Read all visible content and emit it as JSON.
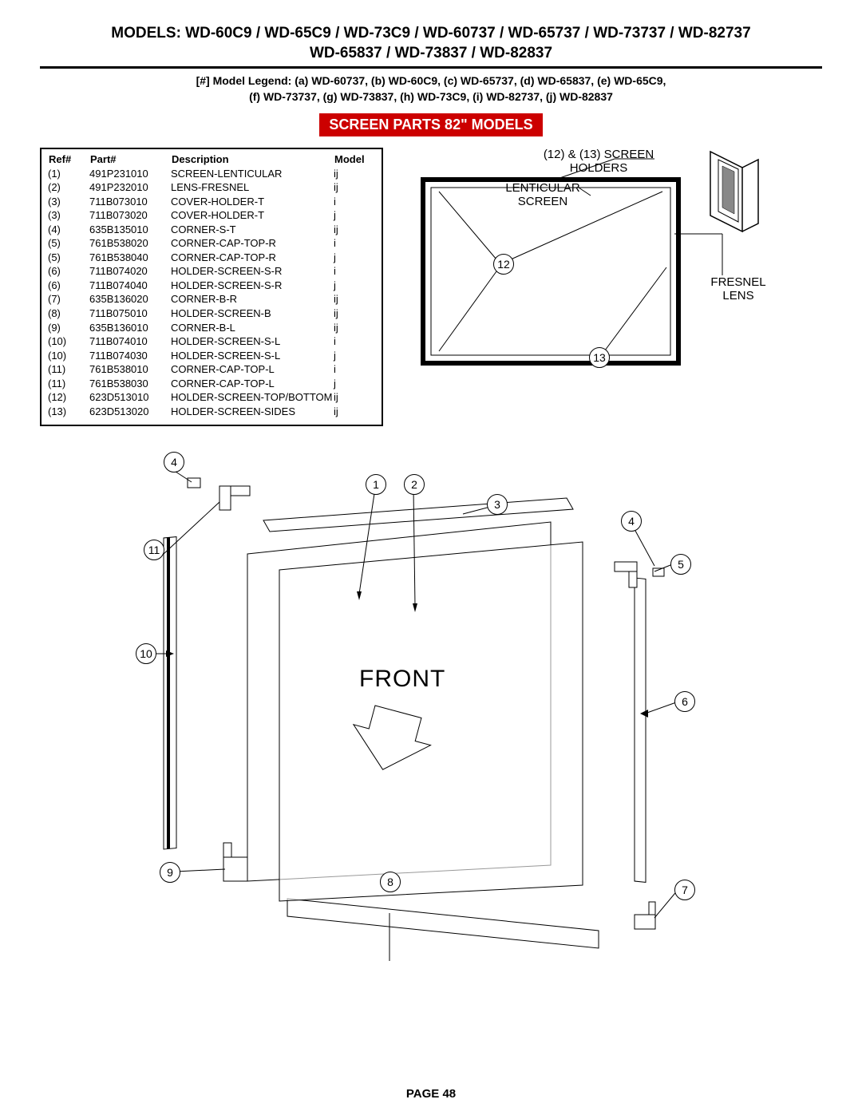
{
  "header": {
    "line1": "MODELS: WD-60C9 / WD-65C9 / WD-73C9 / WD-60737 / WD-65737 / WD-73737 / WD-82737",
    "line2": "WD-65837 / WD-73837 / WD-82837"
  },
  "legend": {
    "line1": "[#] Model Legend:   (a) WD-60737, (b) WD-60C9, (c) WD-65737, (d) WD-65837, (e) WD-65C9,",
    "line2": "(f) WD-73737, (g) WD-73837, (h) WD-73C9, (i) WD-82737, (j) WD-82837"
  },
  "title": "SCREEN PARTS 82\" MODELS",
  "parts": {
    "columns": [
      "Ref#",
      "Part#",
      "Description",
      "Model"
    ],
    "rows": [
      [
        "(1)",
        "491P231010",
        "SCREEN-LENTICULAR",
        "ij"
      ],
      [
        "(2)",
        "491P232010",
        "LENS-FRESNEL",
        "ij"
      ],
      [
        "(3)",
        "711B073010",
        "COVER-HOLDER-T",
        "i"
      ],
      [
        "(3)",
        "711B073020",
        "COVER-HOLDER-T",
        "j"
      ],
      [
        "(4)",
        "635B135010",
        "CORNER-S-T",
        "ij"
      ],
      [
        "(5)",
        "761B538020",
        "CORNER-CAP-TOP-R",
        "i"
      ],
      [
        "(5)",
        "761B538040",
        "CORNER-CAP-TOP-R",
        "j"
      ],
      [
        "(6)",
        "711B074020",
        "HOLDER-SCREEN-S-R",
        "i"
      ],
      [
        "(6)",
        "711B074040",
        "HOLDER-SCREEN-S-R",
        "j"
      ],
      [
        "(7)",
        "635B136020",
        "CORNER-B-R",
        "ij"
      ],
      [
        "(8)",
        "711B075010",
        "HOLDER-SCREEN-B",
        "ij"
      ],
      [
        "(9)",
        "635B136010",
        "CORNER-B-L",
        "ij"
      ],
      [
        "(10)",
        "711B074010",
        "HOLDER-SCREEN-S-L",
        "i"
      ],
      [
        "(10)",
        "711B074030",
        "HOLDER-SCREEN-S-L",
        "j"
      ],
      [
        "(11)",
        "761B538010",
        "CORNER-CAP-TOP-L",
        "i"
      ],
      [
        "(11)",
        "761B538030",
        "CORNER-CAP-TOP-L",
        "j"
      ],
      [
        "(12)",
        "623D513010",
        "HOLDER-SCREEN-TOP/BOTTOM",
        "ij"
      ],
      [
        "(13)",
        "623D513020",
        "HOLDER-SCREEN-SIDES",
        "ij"
      ]
    ]
  },
  "schematic1": {
    "screen_holders": "(12) & (13) SCREEN\nHOLDERS",
    "lenticular": "LENTICULAR\nSCREEN",
    "fresnel": "FRESNEL\nLENS",
    "callout12": "12",
    "callout13": "13"
  },
  "exploded": {
    "front_label": "FRONT",
    "callouts": {
      "c1": "1",
      "c2": "2",
      "c3": "3",
      "c4a": "4",
      "c4b": "4",
      "c5": "5",
      "c6": "6",
      "c7": "7",
      "c8": "8",
      "c9": "9",
      "c10": "10",
      "c11": "11"
    }
  },
  "page_label": "PAGE 48"
}
